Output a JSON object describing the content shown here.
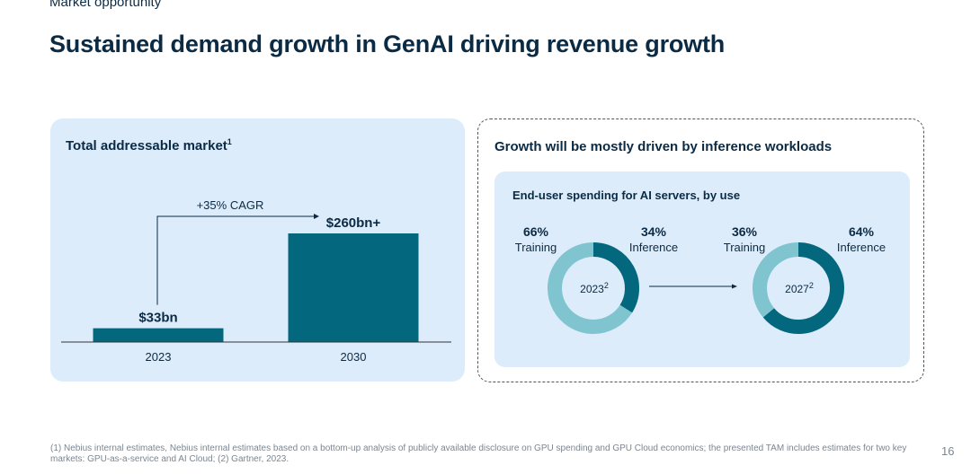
{
  "header": {
    "section_label": "Market opportunity",
    "title": "Sustained demand growth in GenAI driving revenue growth"
  },
  "left_panel": {
    "title": "Total addressable market",
    "title_footnote": "1",
    "cagr_label": "+35% CAGR"
  },
  "right_panel": {
    "title": "Growth will be mostly driven by inference workloads",
    "subtitle": "End-user spending for AI servers, by use",
    "donuts": [
      {
        "year_label": "2023",
        "footnote_mark": "2",
        "left_pct": "66%",
        "left_label": "Training",
        "right_pct": "34%",
        "right_label": "Inference"
      },
      {
        "year_label": "2027",
        "footnote_mark": "2",
        "left_pct": "36%",
        "left_label": "Training",
        "right_pct": "64%",
        "right_label": "Inference"
      }
    ]
  },
  "chart_data": [
    {
      "type": "bar",
      "categories": [
        "2023",
        "2030"
      ],
      "values": [
        33,
        260
      ],
      "data_labels": [
        "$33bn",
        "$260bn+"
      ],
      "annotation": "+35% CAGR",
      "unit": "$bn",
      "ylim": [
        0,
        260
      ],
      "colors": {
        "bar": "#03687d",
        "baseline": "#333333"
      }
    },
    {
      "type": "pie",
      "title": "2023",
      "labels": [
        "Training",
        "Inference"
      ],
      "values": [
        66,
        34
      ],
      "colors": [
        "#7fc4cf",
        "#03687d"
      ]
    },
    {
      "type": "pie",
      "title": "2027",
      "labels": [
        "Training",
        "Inference"
      ],
      "values": [
        36,
        64
      ],
      "colors": [
        "#7fc4cf",
        "#03687d"
      ]
    }
  ],
  "footer": {
    "footnote": "(1) Nebius internal estimates, Nebius internal estimates based on a bottom-up analysis of publicly available disclosure on GPU spending and GPU Cloud economics; the presented TAM includes estimates for two key markets: GPU-as-a-service and AI Cloud; (2) Gartner, 2023.",
    "page_number": "16"
  }
}
